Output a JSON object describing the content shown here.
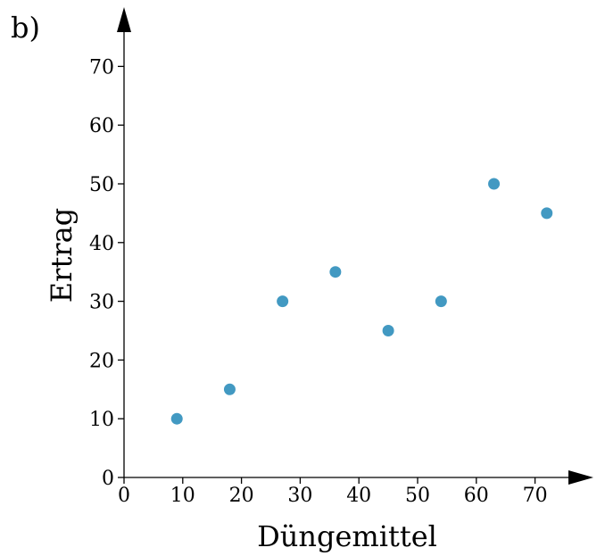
{
  "panel_label": "b)",
  "chart_data": {
    "type": "scatter",
    "xlabel": "Düngemittel",
    "ylabel": "Ertrag",
    "xlim": [
      0,
      75
    ],
    "ylim": [
      0,
      75
    ],
    "xticks": [
      0,
      10,
      20,
      30,
      40,
      50,
      60,
      70
    ],
    "yticks": [
      0,
      10,
      20,
      30,
      40,
      50,
      60,
      70
    ],
    "grid": false,
    "axes_arrows": true,
    "point_color": "#4299c2",
    "points": [
      {
        "x": 9,
        "y": 10
      },
      {
        "x": 18,
        "y": 15
      },
      {
        "x": 27,
        "y": 30
      },
      {
        "x": 36,
        "y": 35
      },
      {
        "x": 45,
        "y": 25
      },
      {
        "x": 54,
        "y": 30
      },
      {
        "x": 63,
        "y": 50
      },
      {
        "x": 72,
        "y": 45
      }
    ]
  }
}
